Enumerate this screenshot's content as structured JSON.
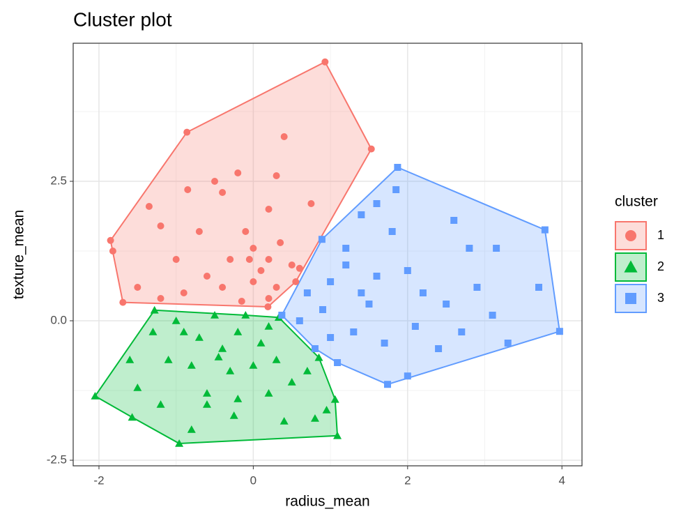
{
  "chart_data": {
    "type": "scatter",
    "title": "Cluster plot",
    "x_label": "radius_mean",
    "y_label": "texture_mean",
    "legend_title": "cluster",
    "xlim": [
      -2.334,
      4.26
    ],
    "ylim": [
      -2.6,
      4.975
    ],
    "xticks": [
      -2,
      0,
      2,
      4
    ],
    "yticks": [
      {
        "value": -2.5,
        "label": "-2.5"
      },
      {
        "value": 0,
        "label": "0.0"
      },
      {
        "value": 2.5,
        "label": "2.5"
      }
    ],
    "x_minor_grid": [
      -1,
      1,
      3
    ],
    "y_minor_grid": [
      -1.25,
      1.25,
      3.75
    ],
    "grid": true,
    "hull": true,
    "legend": "right",
    "series": [
      {
        "name": "1",
        "color": "#F8766D",
        "shape": "circle",
        "x": [
          -1.85,
          -0.86,
          0.93,
          1.53,
          0.6,
          0.19,
          -1.69,
          -1.82,
          -1.5,
          -1.2,
          -1.35,
          -0.85,
          -0.5,
          -0.4,
          -0.2,
          0.3,
          0.2,
          -0.1,
          0.0,
          0.2,
          -0.3,
          -0.6,
          -0.9,
          -1.2,
          -0.4,
          0.0,
          0.3,
          0.5,
          -0.05,
          0.2,
          -0.15,
          0.4,
          0.75,
          -0.7,
          0.35,
          -1.0,
          0.1,
          0.55
        ],
        "y": [
          1.44,
          3.38,
          4.64,
          3.08,
          0.94,
          0.25,
          0.33,
          1.25,
          0.6,
          1.7,
          2.05,
          2.35,
          2.5,
          2.3,
          2.65,
          2.6,
          2.0,
          1.6,
          1.3,
          1.1,
          1.1,
          0.8,
          0.5,
          0.4,
          0.6,
          0.7,
          0.6,
          1.0,
          1.1,
          0.4,
          0.35,
          3.3,
          2.1,
          1.6,
          1.4,
          1.1,
          0.9,
          0.7
        ]
      },
      {
        "name": "2",
        "color": "#00BA38",
        "shape": "triangle",
        "x": [
          -2.05,
          -0.96,
          1.09,
          1.06,
          0.85,
          0.33,
          -1.28,
          -1.57,
          -1.3,
          -1.0,
          -0.7,
          -0.4,
          -0.5,
          -0.2,
          0.1,
          0.3,
          -0.3,
          -0.8,
          -1.1,
          -1.5,
          -1.2,
          -0.6,
          -0.2,
          0.2,
          0.5,
          0.7,
          0.4,
          0.8,
          -0.8,
          -0.6,
          -0.9,
          -0.1,
          0.2,
          -1.6,
          -0.45,
          0.0,
          -0.25,
          0.95
        ],
        "y": [
          -1.35,
          -2.2,
          -2.06,
          -1.41,
          -0.66,
          0.06,
          0.19,
          -1.73,
          -0.2,
          0.0,
          -0.3,
          -0.5,
          0.1,
          -0.2,
          -0.4,
          -0.7,
          -0.9,
          -0.8,
          -0.7,
          -1.2,
          -1.5,
          -1.3,
          -1.4,
          -1.3,
          -1.1,
          -0.9,
          -1.8,
          -1.75,
          -1.95,
          -1.5,
          -0.2,
          0.1,
          -0.1,
          -0.7,
          -0.65,
          -0.8,
          -1.7,
          -1.6
        ]
      },
      {
        "name": "3",
        "color": "#619CFF",
        "shape": "square",
        "x": [
          1.87,
          3.78,
          3.97,
          2.0,
          1.74,
          1.09,
          0.37,
          0.89,
          0.7,
          0.9,
          1.0,
          1.2,
          1.4,
          1.6,
          1.5,
          1.3,
          1.7,
          2.2,
          2.5,
          2.6,
          2.9,
          3.1,
          3.15,
          3.7,
          3.3,
          2.4,
          1.8,
          1.6,
          1.85,
          1.2,
          0.6,
          1.0,
          2.1,
          2.7,
          1.4,
          0.8,
          2.0,
          2.8
        ],
        "y": [
          2.75,
          1.63,
          -0.19,
          -0.99,
          -1.14,
          -0.75,
          0.1,
          1.46,
          0.5,
          0.2,
          0.7,
          1.0,
          0.5,
          0.8,
          0.3,
          -0.2,
          -0.4,
          0.5,
          0.3,
          1.8,
          0.6,
          0.1,
          1.3,
          0.6,
          -0.4,
          -0.5,
          1.6,
          2.1,
          2.35,
          1.3,
          0.0,
          -0.3,
          -0.1,
          -0.2,
          1.9,
          -0.5,
          0.9,
          1.3
        ]
      }
    ]
  }
}
